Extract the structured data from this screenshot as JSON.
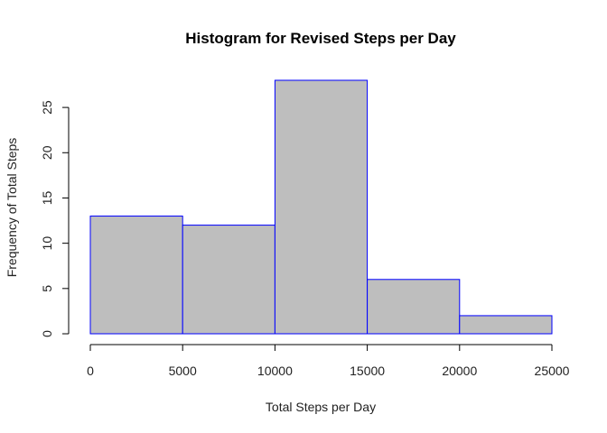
{
  "chart_data": {
    "type": "bar",
    "title": "Histogram for Revised Steps per Day",
    "xlabel": "Total Steps per Day",
    "ylabel": "Frequency of Total Steps",
    "bins": [
      {
        "from": 0,
        "to": 5000,
        "count": 13
      },
      {
        "from": 5000,
        "to": 10000,
        "count": 12
      },
      {
        "from": 10000,
        "to": 15000,
        "count": 28
      },
      {
        "from": 15000,
        "to": 20000,
        "count": 6
      },
      {
        "from": 20000,
        "to": 25000,
        "count": 2
      }
    ],
    "xlim": [
      0,
      25000
    ],
    "ylim": [
      0,
      28
    ],
    "x_ticks": [
      0,
      5000,
      10000,
      15000,
      20000,
      25000
    ],
    "y_ticks": [
      0,
      5,
      10,
      15,
      20,
      25
    ],
    "grid": false,
    "legend": "none",
    "bar_fill": "#bebebe",
    "bar_border": "#0000ff"
  }
}
